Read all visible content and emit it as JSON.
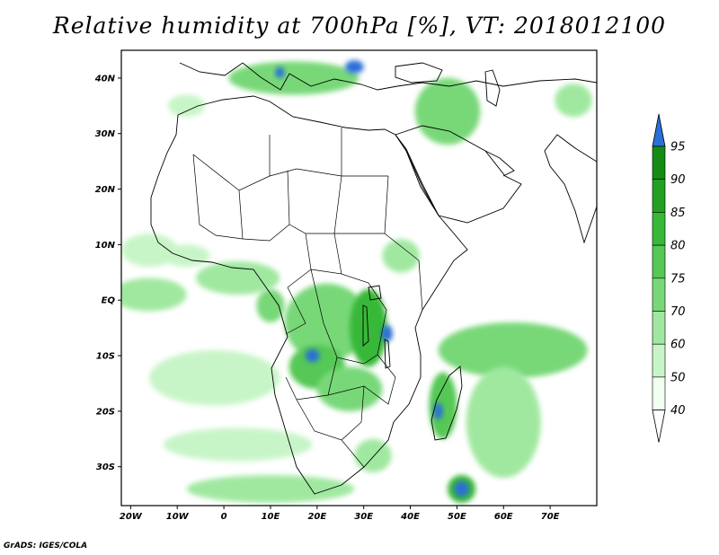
{
  "title": "Relative humidity at 700hPa [%], VT: 2018012100",
  "credit": "GrADS: IGES/COLA",
  "map": {
    "lon_range": [
      -22,
      80
    ],
    "lat_range": [
      -37,
      45
    ],
    "lon_ticks": [
      {
        "value": -20,
        "label": "20W"
      },
      {
        "value": -10,
        "label": "10W"
      },
      {
        "value": 0,
        "label": "0"
      },
      {
        "value": 10,
        "label": "10E"
      },
      {
        "value": 20,
        "label": "20E"
      },
      {
        "value": 30,
        "label": "30E"
      },
      {
        "value": 40,
        "label": "40E"
      },
      {
        "value": 50,
        "label": "50E"
      },
      {
        "value": 60,
        "label": "60E"
      },
      {
        "value": 70,
        "label": "70E"
      }
    ],
    "lat_ticks": [
      {
        "value": 40,
        "label": "40N"
      },
      {
        "value": 30,
        "label": "30N"
      },
      {
        "value": 20,
        "label": "20N"
      },
      {
        "value": 10,
        "label": "10N"
      },
      {
        "value": 0,
        "label": "EQ"
      },
      {
        "value": -10,
        "label": "10S"
      },
      {
        "value": -20,
        "label": "20S"
      },
      {
        "value": -30,
        "label": "30S"
      }
    ]
  },
  "colorbar": {
    "levels": [
      "40",
      "50",
      "60",
      "70",
      "75",
      "80",
      "85",
      "90",
      "95"
    ],
    "colors": [
      "#f0fff0",
      "#c8f5c8",
      "#a0e8a0",
      "#78d878",
      "#55c855",
      "#37b837",
      "#22a022",
      "#148c14",
      "#2a6fd6"
    ],
    "triangle_low": "#ffffff",
    "triangle_high": "#2a6fd6"
  },
  "regions": [
    {
      "name": "sahel-west-band",
      "lon": -16,
      "lat": 9,
      "rx": 6,
      "ry": 3,
      "level": 1
    },
    {
      "name": "gulf-guinea",
      "lon": 3,
      "lat": 4,
      "rx": 9,
      "ry": 3,
      "level": 2
    },
    {
      "name": "atlantic-equatorial",
      "lon": -16,
      "lat": 1,
      "rx": 8,
      "ry": 3,
      "level": 2
    },
    {
      "name": "congo-basin",
      "lon": 22,
      "lat": -4,
      "rx": 9,
      "ry": 7,
      "level": 3
    },
    {
      "name": "angola-plateau",
      "lon": 20,
      "lat": -12,
      "rx": 6,
      "ry": 4,
      "level": 4
    },
    {
      "name": "angola-core",
      "lon": 19,
      "lat": -10,
      "rx": 1.5,
      "ry": 1.2,
      "level": 8
    },
    {
      "name": "great-lakes",
      "lon": 31,
      "lat": -5,
      "rx": 4,
      "ry": 7,
      "level": 5
    },
    {
      "name": "tanzania-core",
      "lon": 35,
      "lat": -6,
      "rx": 1.2,
      "ry": 1.5,
      "level": 8
    },
    {
      "name": "zambia",
      "lon": 27,
      "lat": -16,
      "rx": 7,
      "ry": 4,
      "level": 3
    },
    {
      "name": "ethiopia",
      "lon": 38,
      "lat": 8,
      "rx": 4,
      "ry": 3,
      "level": 2
    },
    {
      "name": "madagascar",
      "lon": 47,
      "lat": -19,
      "rx": 3,
      "ry": 6,
      "level": 4
    },
    {
      "name": "madagascar-core",
      "lon": 46,
      "lat": -20,
      "rx": 1,
      "ry": 1.5,
      "level": 8
    },
    {
      "name": "indian-ocean-band",
      "lon": 62,
      "lat": -9,
      "rx": 16,
      "ry": 5,
      "level": 3
    },
    {
      "name": "indian-ocean-south",
      "lon": 60,
      "lat": -22,
      "rx": 8,
      "ry": 10,
      "level": 2
    },
    {
      "name": "cyclone",
      "lon": 51,
      "lat": -34,
      "rx": 3,
      "ry": 2.5,
      "level": 5
    },
    {
      "name": "cyclone-eye",
      "lon": 51,
      "lat": -34,
      "rx": 1.6,
      "ry": 1.4,
      "level": 8
    },
    {
      "name": "south-atlantic-swirl",
      "lon": -2,
      "lat": -14,
      "rx": 14,
      "ry": 5,
      "level": 1
    },
    {
      "name": "south-atlantic-band",
      "lon": 3,
      "lat": -26,
      "rx": 16,
      "ry": 3,
      "level": 1
    },
    {
      "name": "southern-ocean",
      "lon": 10,
      "lat": -34,
      "rx": 18,
      "ry": 2.5,
      "level": 2
    },
    {
      "name": "mediterranean",
      "lon": 15,
      "lat": 40,
      "rx": 14,
      "ry": 3,
      "level": 3
    },
    {
      "name": "balkans-core",
      "lon": 28,
      "lat": 42,
      "rx": 2,
      "ry": 1.2,
      "level": 8
    },
    {
      "name": "italy-core",
      "lon": 12,
      "lat": 41,
      "rx": 1,
      "ry": 1,
      "level": 8
    },
    {
      "name": "middle-east",
      "lon": 48,
      "lat": 34,
      "rx": 7,
      "ry": 6,
      "level": 3
    },
    {
      "name": "arabian-sea-edge",
      "lon": 75,
      "lat": 36,
      "rx": 4,
      "ry": 3,
      "level": 2
    },
    {
      "name": "nw-africa-coast",
      "lon": -8,
      "lat": 35,
      "rx": 4,
      "ry": 2,
      "level": 1
    },
    {
      "name": "southern-africa-east",
      "lon": 32,
      "lat": -28,
      "rx": 4,
      "ry": 3,
      "level": 2
    },
    {
      "name": "west-africa-interior",
      "lon": -8,
      "lat": 8,
      "rx": 5,
      "ry": 2,
      "level": 1
    },
    {
      "name": "gabon-coast",
      "lon": 10,
      "lat": -1,
      "rx": 3,
      "ry": 3,
      "level": 3
    }
  ]
}
